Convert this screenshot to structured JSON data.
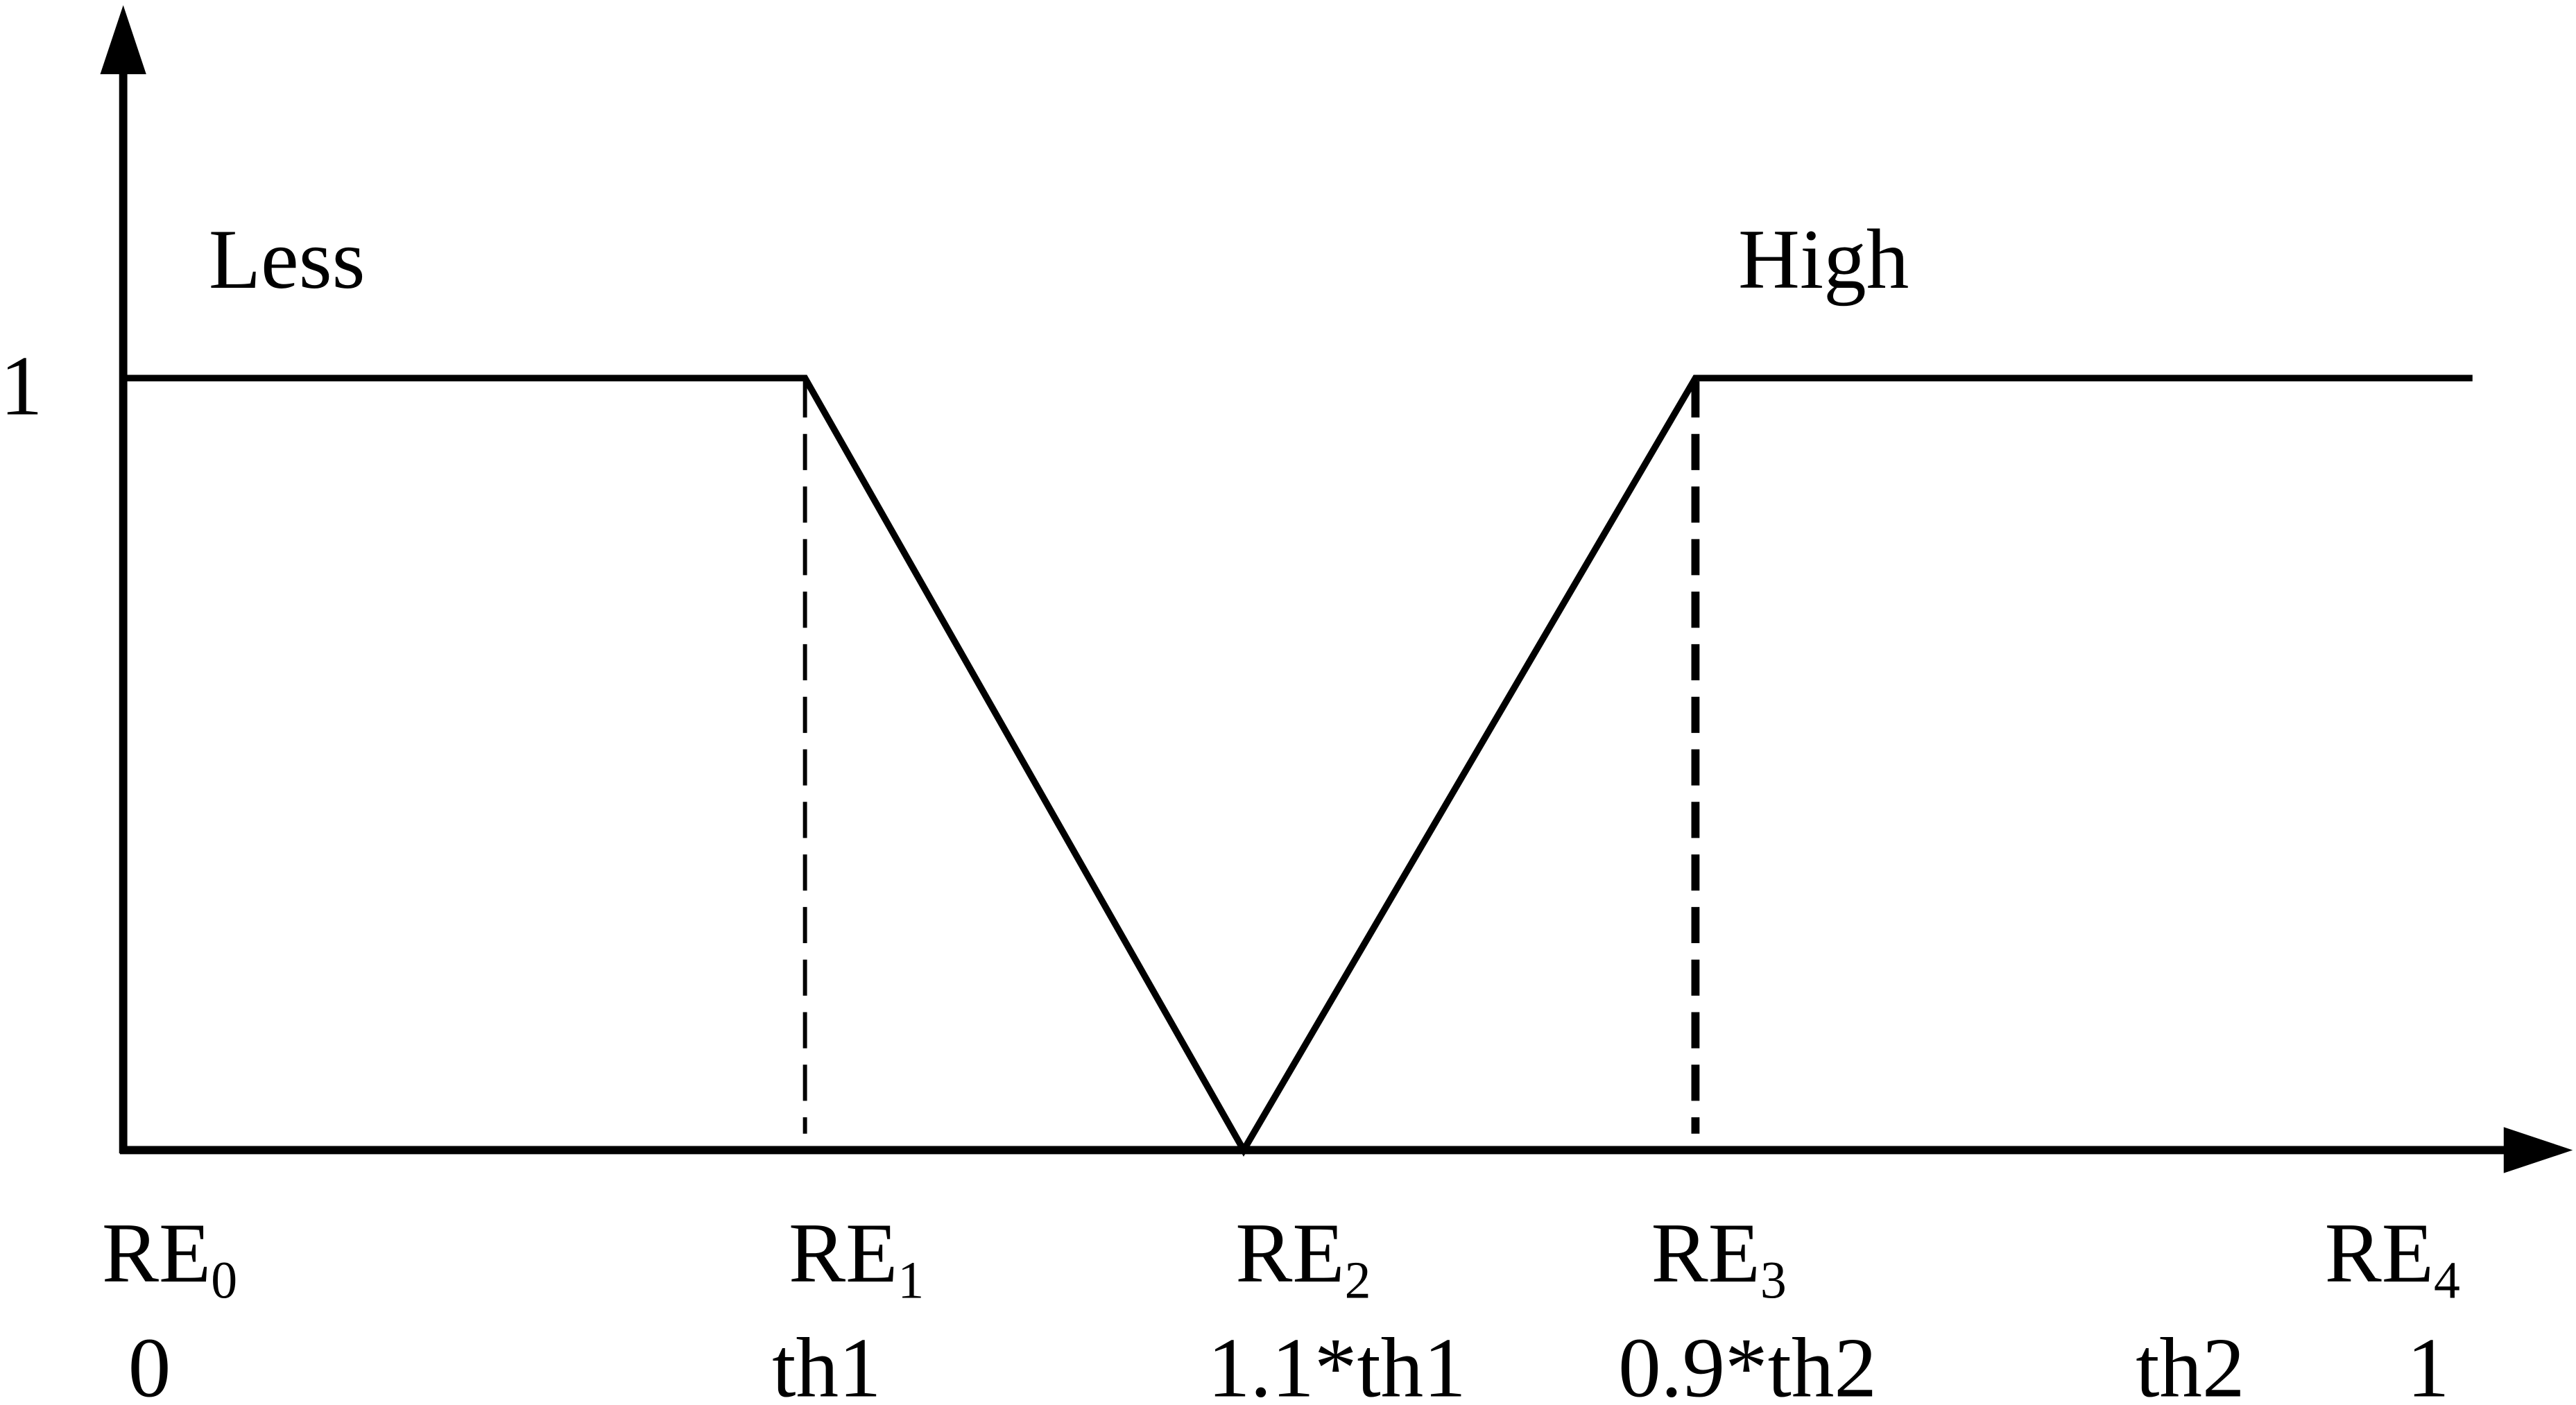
{
  "labels": {
    "less": "Less",
    "high": "High",
    "y_one": "1"
  },
  "points": [
    {
      "name": {
        "base": "RE",
        "sub": "0"
      },
      "value": "0"
    },
    {
      "name": {
        "base": "RE",
        "sub": "1"
      },
      "value": "th1"
    },
    {
      "name": {
        "base": "RE",
        "sub": "2"
      },
      "value": "1.1*th1"
    },
    {
      "name": {
        "base": "RE",
        "sub": "3"
      },
      "value": "0.9*th2"
    },
    {
      "name": null,
      "value": "th2"
    },
    {
      "name": {
        "base": "RE",
        "sub": "4"
      },
      "value": "1"
    }
  ]
}
